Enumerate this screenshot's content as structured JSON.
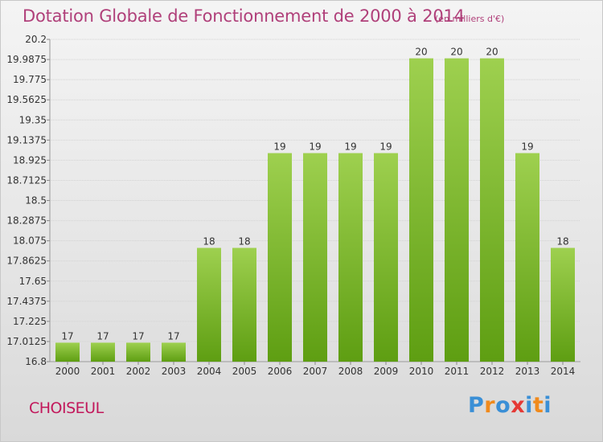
{
  "title": "Dotation Globale de Fonctionnement de 2000 à 2014",
  "subtitle": "(en milliers d'€)",
  "commune": "CHOISEUL",
  "logo": {
    "text": "Proxiti",
    "colors": [
      "#3a8fd6",
      "#f08a1c",
      "#3a8fd6",
      "#e53935",
      "#3a8fd6",
      "#f08a1c",
      "#3a8fd6"
    ]
  },
  "chart_data": {
    "type": "bar",
    "title": "Dotation Globale de Fonctionnement de 2000 à 2014",
    "xlabel": "",
    "ylabel": "",
    "categories": [
      "2000",
      "2001",
      "2002",
      "2003",
      "2004",
      "2005",
      "2006",
      "2007",
      "2008",
      "2009",
      "2010",
      "2011",
      "2012",
      "2013",
      "2014"
    ],
    "values": [
      17,
      17,
      17,
      17,
      18,
      18,
      19,
      19,
      19,
      19,
      20,
      20,
      20,
      19,
      18
    ],
    "value_labels": [
      "17",
      "17",
      "17",
      "17",
      "18",
      "18",
      "19",
      "19",
      "19",
      "19",
      "20",
      "20",
      "20",
      "19",
      "18"
    ],
    "ylim": [
      16.8,
      20.2
    ],
    "yticks": [
      16.8,
      17.0125,
      17.225,
      17.4375,
      17.65,
      17.8625,
      18.075,
      18.2875,
      18.5,
      18.7125,
      18.925,
      19.1375,
      19.35,
      19.5625,
      19.775,
      19.9875,
      20.2
    ],
    "ytick_labels": [
      "16.8",
      "17.0125",
      "17.225",
      "17.4375",
      "17.65",
      "17.8625",
      "18.075",
      "18.2875",
      "18.5",
      "18.7125",
      "18.925",
      "19.1375",
      "19.35",
      "19.5625",
      "19.775",
      "19.9875",
      "20.2"
    ],
    "grid": true,
    "bar_color_top": "#9ed04f",
    "bar_color_bottom": "#5e9e12"
  }
}
